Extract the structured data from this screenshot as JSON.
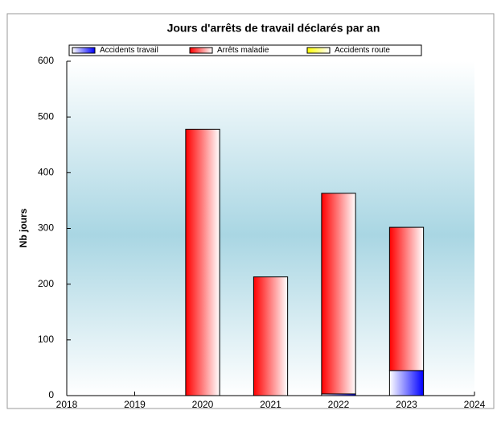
{
  "chart_data": {
    "type": "bar",
    "stacked": true,
    "title": "Jours d'arrêts de travail déclarés par an",
    "y_label": "Nb jours",
    "x": [
      2020,
      2021,
      2022,
      2023
    ],
    "xlim": [
      2018,
      2024
    ],
    "xticks": [
      2018,
      2019,
      2020,
      2021,
      2022,
      2023,
      2024
    ],
    "ylim": [
      0,
      600
    ],
    "yticks": [
      0,
      100,
      200,
      300,
      400,
      500,
      600
    ],
    "series": [
      {
        "name": "Accidents travail",
        "color": "#0000ff",
        "values": [
          0,
          0,
          3,
          45
        ]
      },
      {
        "name": "Arrêts maladie",
        "color": "#ff0000",
        "values": [
          478,
          213,
          360,
          257
        ]
      },
      {
        "name": "Accidents route",
        "color": "#ffff00",
        "values": [
          0,
          0,
          0,
          0
        ]
      }
    ]
  }
}
